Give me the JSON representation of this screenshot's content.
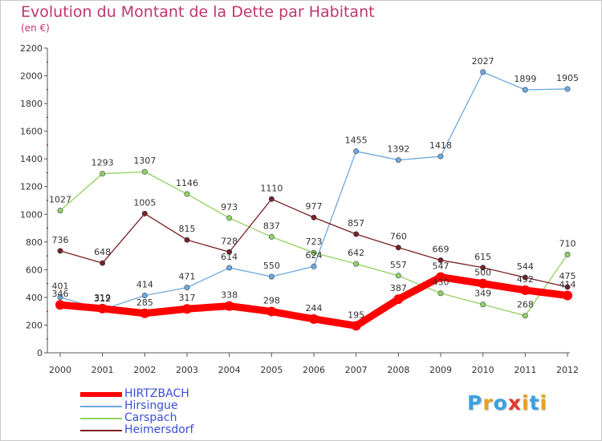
{
  "title": "Evolution du Montant de la Dette par Habitant",
  "subtitle": "(en €)",
  "logo": {
    "letters": [
      "P",
      "r",
      "o",
      "x",
      "i",
      "t",
      "i"
    ],
    "colors": [
      "#3aa0e0",
      "#e8a020",
      "#3aa0e0",
      "#e03a30",
      "#e8a020",
      "#3aa0e0",
      "#e8a020"
    ]
  },
  "chart_data": {
    "type": "line",
    "x": [
      "2000",
      "2001",
      "2002",
      "2003",
      "2004",
      "2005",
      "2006",
      "2007",
      "2008",
      "2009",
      "2010",
      "2011",
      "2012"
    ],
    "ylim": [
      0,
      2200
    ],
    "yticks": [
      0,
      200,
      400,
      600,
      800,
      1000,
      1200,
      1400,
      1600,
      1800,
      2000,
      2200
    ],
    "grid": false,
    "legend_position": "bottom-left",
    "series": [
      {
        "name": "HIRTZBACH",
        "color": "#ff0000",
        "values": [
          346,
          319,
          285,
          317,
          338,
          298,
          244,
          195,
          387,
          547,
          500,
          452,
          414
        ],
        "labels": [
          "346",
          "319",
          "285",
          "317",
          "338",
          "298",
          "244",
          "195",
          "387",
          "547",
          "500",
          "452",
          "414"
        ]
      },
      {
        "name": "Hirsingue",
        "color": "#6fa8dc",
        "values": [
          401,
          312,
          414,
          471,
          614,
          550,
          624,
          1455,
          1392,
          1418,
          2027,
          1899,
          1905
        ],
        "labels": [
          "401",
          "312",
          "414",
          "471",
          "614",
          "550",
          "624",
          "1455",
          "1392",
          "1418",
          "2027",
          "1899",
          "1905"
        ]
      },
      {
        "name": "Carspach",
        "color": "#93d160",
        "values": [
          1027,
          1293,
          1307,
          1146,
          973,
          837,
          723,
          642,
          557,
          430,
          349,
          268,
          710
        ],
        "labels": [
          "1027",
          "1293",
          "1307",
          "1146",
          "973",
          "837",
          "723",
          "642",
          "557",
          "430",
          "349",
          "268",
          "710"
        ]
      },
      {
        "name": "Heimersdorf",
        "color": "#7a1f22",
        "values": [
          736,
          648,
          1005,
          815,
          728,
          1110,
          977,
          857,
          760,
          669,
          615,
          544,
          475
        ],
        "labels": [
          "736",
          "648",
          "1005",
          "815",
          "728",
          "1110",
          "977",
          "857",
          "760",
          "669",
          "615",
          "544",
          "475"
        ]
      }
    ]
  }
}
